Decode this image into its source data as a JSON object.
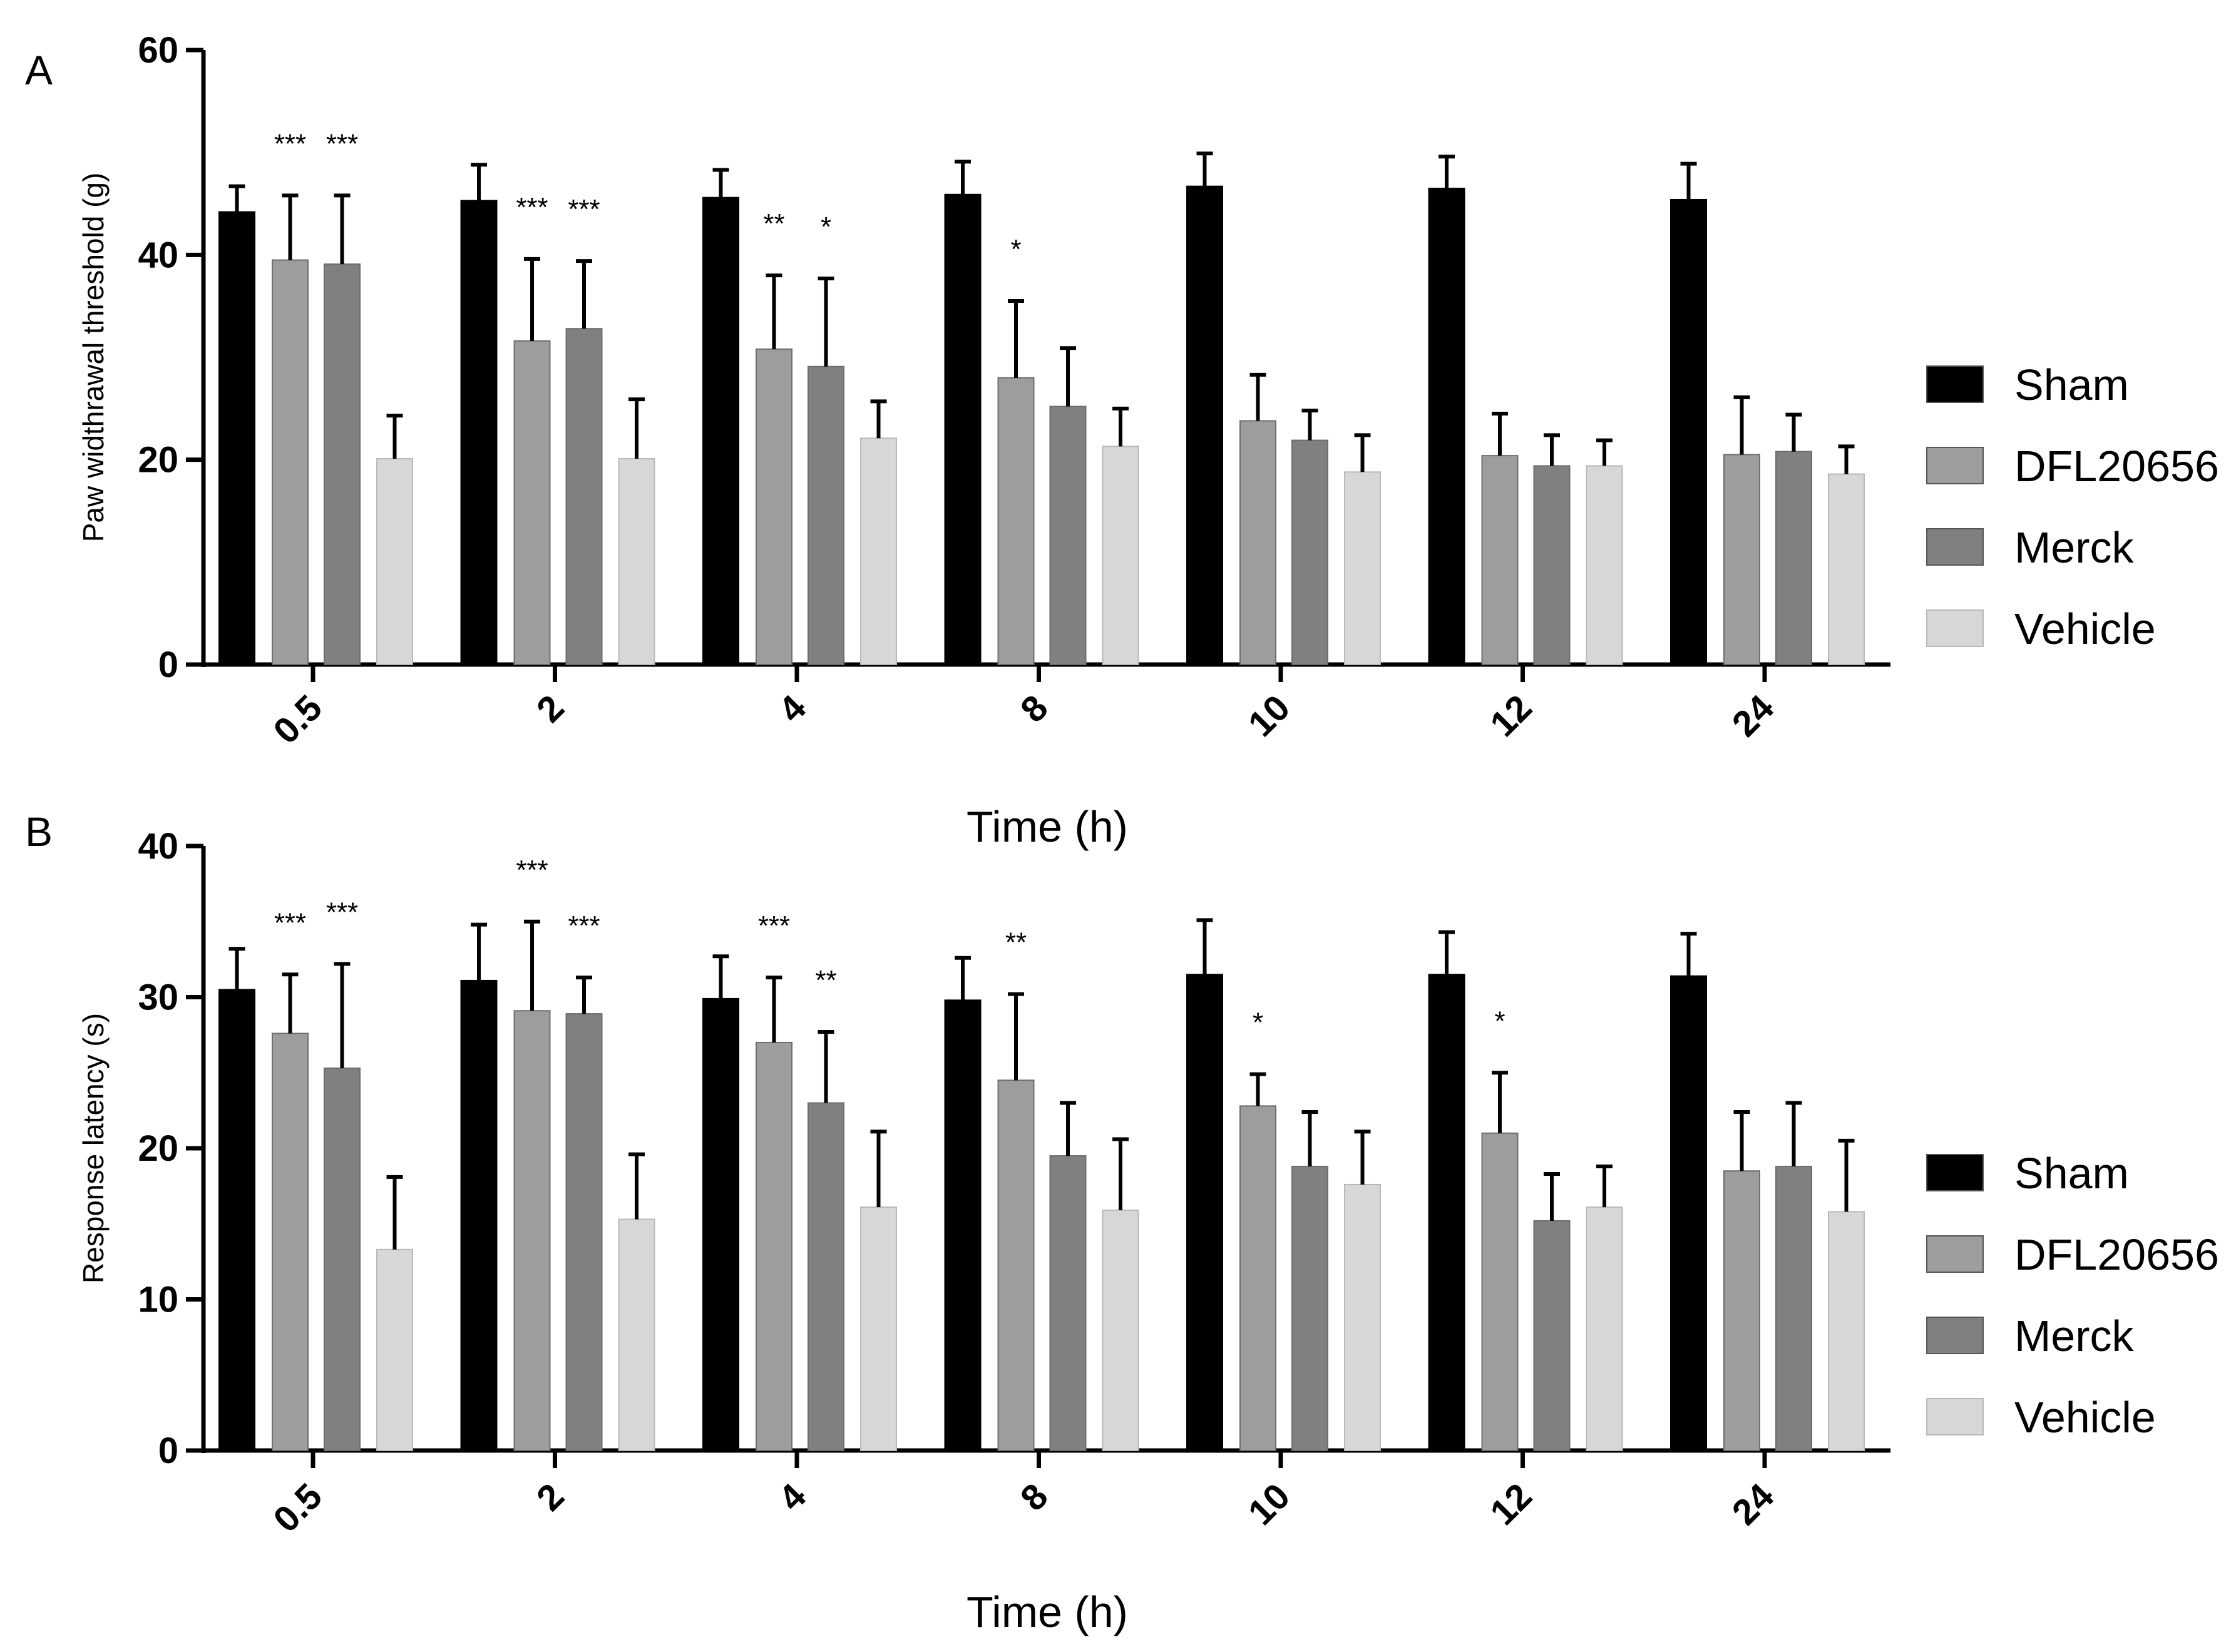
{
  "chart_data": [
    {
      "panel": "A",
      "type": "bar",
      "title": "",
      "xlabel": "Time (h)",
      "ylabel": "Paw widthrawal threshold (g)",
      "ylim": [
        0,
        60
      ],
      "yticks": [
        "0",
        "20",
        "40",
        "60"
      ],
      "categories": [
        "0.5",
        "2",
        "4",
        "8",
        "10",
        "12",
        "24"
      ],
      "legend_position": "right",
      "series": [
        {
          "name": "Sham",
          "color": "#000000",
          "values": [
            44.2,
            45.3,
            45.6,
            45.9,
            46.7,
            46.5,
            45.4
          ],
          "errors": [
            2.5,
            3.5,
            2.7,
            3.2,
            3.2,
            3.1,
            3.5
          ]
        },
        {
          "name": "DFL20656",
          "color": "#9d9d9f",
          "values": [
            39.5,
            31.6,
            30.8,
            28.0,
            23.8,
            20.4,
            20.5
          ],
          "errors": [
            6.3,
            8.0,
            7.2,
            7.5,
            4.5,
            4.1,
            5.6
          ]
        },
        {
          "name": "Merck",
          "color": "#808080",
          "values": [
            39.1,
            32.8,
            29.1,
            25.2,
            21.9,
            19.4,
            20.8
          ],
          "errors": [
            6.7,
            6.6,
            8.6,
            5.7,
            2.9,
            3.0,
            3.6
          ]
        },
        {
          "name": "Vehicle",
          "color": "#d7d7d8",
          "values": [
            20.1,
            20.1,
            22.1,
            21.3,
            18.8,
            19.4,
            18.6
          ],
          "errors": [
            4.2,
            5.8,
            3.6,
            3.7,
            3.6,
            2.5,
            2.7
          ]
        }
      ],
      "significance": [
        {
          "category": "0.5",
          "series": "DFL20656",
          "label": "***"
        },
        {
          "category": "0.5",
          "series": "Merck",
          "label": "***"
        },
        {
          "category": "2",
          "series": "DFL20656",
          "label": "***"
        },
        {
          "category": "2",
          "series": "Merck",
          "label": "***"
        },
        {
          "category": "4",
          "series": "DFL20656",
          "label": "**"
        },
        {
          "category": "4",
          "series": "Merck",
          "label": "*"
        },
        {
          "category": "8",
          "series": "DFL20656",
          "label": "*"
        }
      ]
    },
    {
      "panel": "B",
      "type": "bar",
      "title": "",
      "xlabel": "Time (h)",
      "ylabel": "Response latency (s)",
      "ylim": [
        0,
        40
      ],
      "yticks": [
        "0",
        "10",
        "20",
        "30",
        "40"
      ],
      "categories": [
        "0.5",
        "2",
        "4",
        "8",
        "10",
        "12",
        "24"
      ],
      "legend_position": "right",
      "series": [
        {
          "name": "Sham",
          "color": "#000000",
          "values": [
            30.5,
            31.1,
            29.9,
            29.8,
            31.5,
            31.5,
            31.4
          ],
          "errors": [
            2.7,
            3.7,
            2.8,
            2.8,
            3.6,
            2.8,
            2.8
          ]
        },
        {
          "name": "DFL20656",
          "color": "#9d9d9f",
          "values": [
            27.6,
            29.1,
            27.0,
            24.5,
            22.8,
            21.0,
            18.5
          ],
          "errors": [
            3.9,
            5.9,
            4.3,
            5.7,
            2.1,
            4.0,
            3.9
          ]
        },
        {
          "name": "Merck",
          "color": "#808080",
          "values": [
            25.3,
            28.9,
            23.0,
            19.5,
            18.8,
            15.2,
            18.8
          ],
          "errors": [
            6.9,
            2.4,
            4.7,
            3.5,
            3.6,
            3.1,
            4.2
          ]
        },
        {
          "name": "Vehicle",
          "color": "#d7d7d8",
          "values": [
            13.3,
            15.3,
            16.1,
            15.9,
            17.6,
            16.1,
            15.8
          ],
          "errors": [
            4.8,
            4.3,
            5.0,
            4.7,
            3.5,
            2.7,
            4.7
          ]
        }
      ],
      "significance": [
        {
          "category": "0.5",
          "series": "DFL20656",
          "label": "***"
        },
        {
          "category": "0.5",
          "series": "Merck",
          "label": "***"
        },
        {
          "category": "2",
          "series": "DFL20656",
          "label": "***"
        },
        {
          "category": "2",
          "series": "Merck",
          "label": "***"
        },
        {
          "category": "4",
          "series": "DFL20656",
          "label": "***"
        },
        {
          "category": "4",
          "series": "Merck",
          "label": "**"
        },
        {
          "category": "8",
          "series": "DFL20656",
          "label": "**"
        },
        {
          "category": "10",
          "series": "DFL20656",
          "label": "*"
        },
        {
          "category": "12",
          "series": "DFL20656",
          "label": "*"
        }
      ]
    }
  ]
}
